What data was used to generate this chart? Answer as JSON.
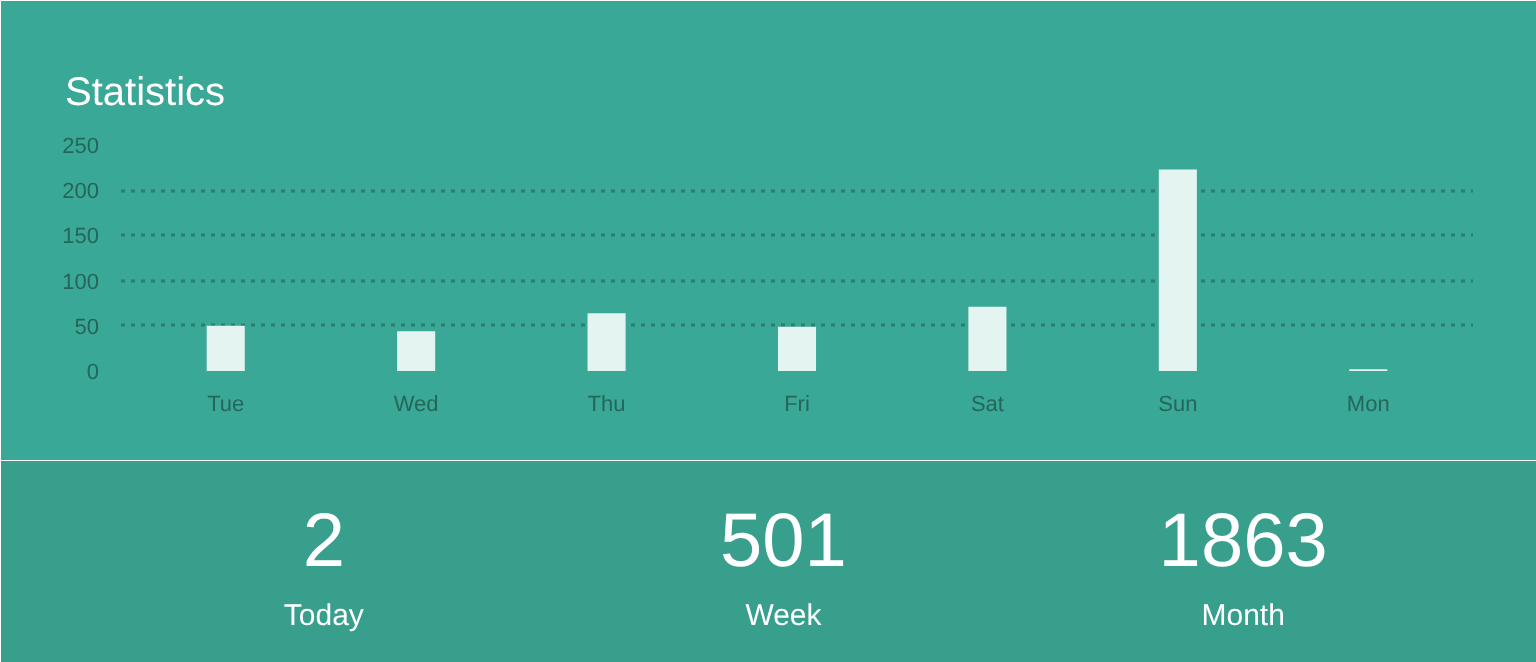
{
  "chart_data": {
    "type": "bar",
    "title": "Statistics",
    "categories": [
      "Tue",
      "Wed",
      "Thu",
      "Fri",
      "Sat",
      "Sun",
      "Mon"
    ],
    "values": [
      50,
      44,
      64,
      49,
      71,
      223,
      2
    ],
    "color": "#e4f4f0",
    "ylim": [
      0,
      250
    ],
    "yticks": [
      0,
      50,
      100,
      150,
      200,
      250
    ],
    "grid": "y",
    "annotations": [
      "2",
      "Today",
      "501",
      "Week",
      "1863",
      "Month"
    ]
  }
}
